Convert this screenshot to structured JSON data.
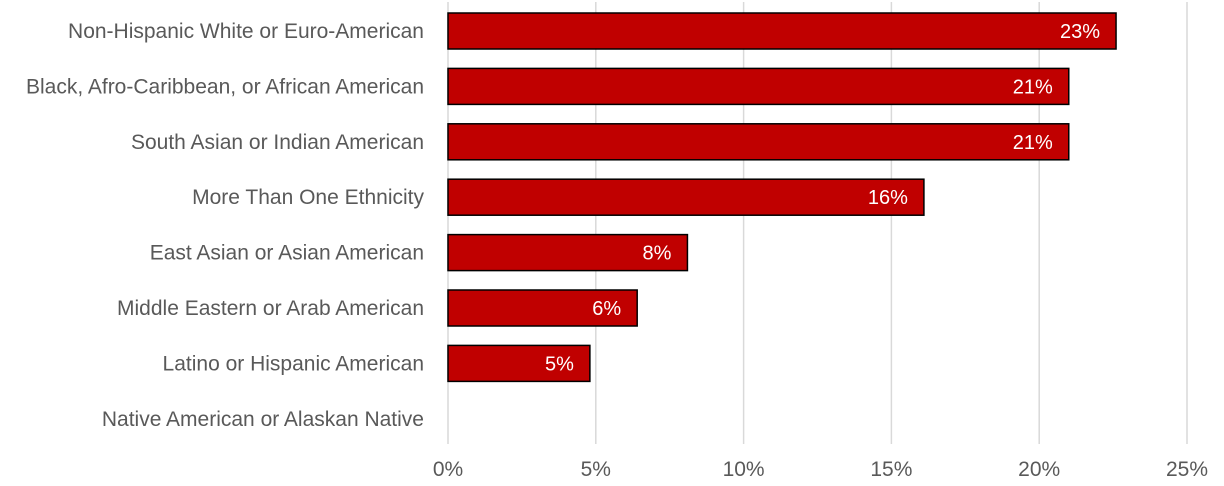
{
  "chart_data": {
    "type": "bar",
    "orientation": "horizontal",
    "categories": [
      "Non-Hispanic White or Euro-American",
      "Black, Afro-Caribbean, or African American",
      "South Asian or Indian American",
      "More Than One Ethnicity",
      "East Asian or Asian American",
      "Middle Eastern or Arab American",
      "Latino or Hispanic American",
      "Native American or Alaskan Native"
    ],
    "values": [
      22.6,
      21.0,
      21.0,
      16.1,
      8.1,
      6.4,
      4.8,
      0
    ],
    "data_labels": [
      "23%",
      "21%",
      "21%",
      "16%",
      "8%",
      "6%",
      "5%",
      ""
    ],
    "xlim": [
      0,
      25
    ],
    "xticks": [
      "0%",
      "5%",
      "10%",
      "15%",
      "20%",
      "25%"
    ],
    "grid": true,
    "legend": "none",
    "bar_color": "#c00000",
    "title": "",
    "xlabel": "",
    "ylabel": ""
  }
}
